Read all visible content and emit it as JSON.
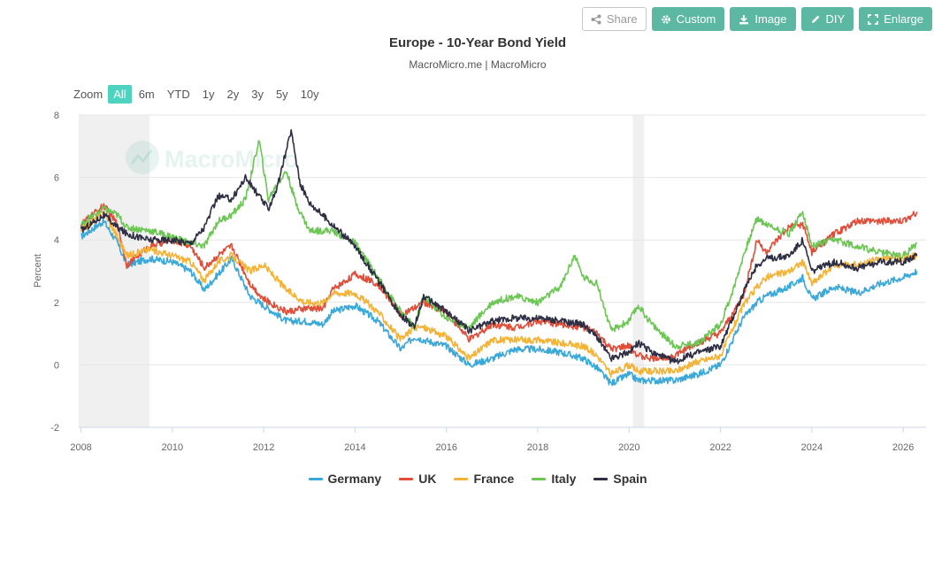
{
  "toolbar": {
    "share_label": "Share",
    "custom_label": "Custom",
    "image_label": "Image",
    "diy_label": "DIY",
    "enlarge_label": "Enlarge"
  },
  "zoom": {
    "label": "Zoom",
    "options": [
      "All",
      "6m",
      "YTD",
      "1y",
      "2y",
      "3y",
      "5y",
      "10y"
    ],
    "active": "All"
  },
  "watermark": "MacroMicro",
  "colors": {
    "Germany": "#3aa8d8",
    "UK": "#e04e39",
    "France": "#f5b335",
    "Italy": "#6cc653",
    "Spain": "#2e2e44",
    "recession_band": "#f0f0f0",
    "accent": "#5cb8a3"
  },
  "chart_data": {
    "type": "line",
    "title": "Europe - 10-Year Bond Yield",
    "subtitle": "MacroMicro.me | MacroMicro",
    "ylabel": "Percent",
    "xlabel": "",
    "ylim": [
      -2,
      8
    ],
    "yticks": [
      -2,
      0,
      2,
      4,
      6,
      8
    ],
    "xlim": [
      2007.95,
      2026.5
    ],
    "xticks": [
      2008,
      2010,
      2012,
      2014,
      2016,
      2018,
      2020,
      2022,
      2024,
      2026
    ],
    "grid": true,
    "legend_position": "bottom",
    "shaded_periods": [
      [
        2007.95,
        2009.5
      ],
      [
        2020.08,
        2020.33
      ]
    ],
    "series": [
      {
        "name": "Germany",
        "x": [
          2008.0,
          2008.5,
          2008.8,
          2009.0,
          2009.5,
          2010.0,
          2010.4,
          2010.7,
          2011.0,
          2011.3,
          2011.7,
          2012.0,
          2012.5,
          2012.9,
          2013.3,
          2013.5,
          2014.0,
          2014.5,
          2015.0,
          2015.3,
          2015.5,
          2016.0,
          2016.5,
          2017.0,
          2017.5,
          2018.0,
          2018.5,
          2019.0,
          2019.3,
          2019.6,
          2020.0,
          2020.2,
          2020.5,
          2021.0,
          2021.5,
          2022.0,
          2022.5,
          2022.8,
          2023.0,
          2023.5,
          2023.8,
          2024.0,
          2024.5,
          2025.0,
          2025.5,
          2026.0,
          2026.3
        ],
        "values": [
          4.1,
          4.6,
          3.9,
          3.2,
          3.4,
          3.3,
          3.0,
          2.4,
          2.9,
          3.4,
          2.2,
          1.9,
          1.4,
          1.4,
          1.3,
          1.7,
          1.9,
          1.4,
          0.5,
          0.9,
          0.8,
          0.6,
          0.0,
          0.2,
          0.5,
          0.5,
          0.4,
          0.2,
          -0.1,
          -0.6,
          -0.3,
          -0.5,
          -0.5,
          -0.5,
          -0.3,
          0.0,
          1.5,
          2.0,
          2.2,
          2.5,
          2.8,
          2.1,
          2.5,
          2.3,
          2.6,
          2.8,
          3.0
        ]
      },
      {
        "name": "UK",
        "x": [
          2008.0,
          2008.5,
          2008.8,
          2009.0,
          2009.5,
          2010.0,
          2010.4,
          2010.7,
          2011.0,
          2011.3,
          2011.7,
          2012.0,
          2012.5,
          2012.9,
          2013.3,
          2013.5,
          2014.0,
          2014.5,
          2015.0,
          2015.3,
          2015.5,
          2016.0,
          2016.5,
          2017.0,
          2017.5,
          2018.0,
          2018.5,
          2019.0,
          2019.3,
          2019.6,
          2020.0,
          2020.2,
          2020.5,
          2021.0,
          2021.5,
          2022.0,
          2022.5,
          2022.8,
          2023.0,
          2023.5,
          2023.8,
          2024.0,
          2024.5,
          2025.0,
          2025.5,
          2026.0,
          2026.3
        ],
        "values": [
          4.5,
          5.1,
          4.5,
          3.2,
          3.8,
          4.0,
          3.8,
          3.1,
          3.5,
          3.8,
          2.6,
          2.1,
          1.7,
          1.8,
          1.8,
          2.4,
          2.9,
          2.6,
          1.6,
          1.8,
          2.0,
          1.7,
          0.8,
          1.3,
          1.2,
          1.4,
          1.3,
          1.2,
          1.0,
          0.5,
          0.6,
          0.3,
          0.2,
          0.3,
          0.7,
          1.0,
          2.2,
          4.0,
          3.6,
          4.4,
          4.5,
          3.6,
          4.2,
          4.6,
          4.6,
          4.6,
          4.9
        ]
      },
      {
        "name": "France",
        "x": [
          2008.0,
          2008.5,
          2008.8,
          2009.0,
          2009.5,
          2010.0,
          2010.4,
          2010.7,
          2011.0,
          2011.3,
          2011.7,
          2012.0,
          2012.5,
          2012.9,
          2013.3,
          2013.5,
          2014.0,
          2014.5,
          2015.0,
          2015.3,
          2015.5,
          2016.0,
          2016.5,
          2017.0,
          2017.5,
          2018.0,
          2018.5,
          2019.0,
          2019.3,
          2019.6,
          2020.0,
          2020.2,
          2020.5,
          2021.0,
          2021.5,
          2022.0,
          2022.5,
          2022.8,
          2023.0,
          2023.5,
          2023.8,
          2024.0,
          2024.5,
          2025.0,
          2025.5,
          2026.0,
          2026.3
        ],
        "values": [
          4.3,
          4.9,
          4.1,
          3.5,
          3.7,
          3.5,
          3.3,
          2.7,
          3.3,
          3.5,
          3.0,
          3.2,
          2.4,
          2.0,
          2.0,
          2.3,
          2.3,
          1.7,
          0.8,
          1.2,
          1.2,
          0.9,
          0.2,
          0.8,
          0.8,
          0.8,
          0.7,
          0.6,
          0.3,
          -0.3,
          0.0,
          -0.2,
          -0.2,
          -0.2,
          0.1,
          0.3,
          1.9,
          2.5,
          2.8,
          3.0,
          3.3,
          2.6,
          3.2,
          3.2,
          3.4,
          3.4,
          3.5
        ]
      },
      {
        "name": "Italy",
        "x": [
          2008.0,
          2008.5,
          2008.8,
          2009.0,
          2009.5,
          2010.0,
          2010.4,
          2010.7,
          2011.0,
          2011.3,
          2011.6,
          2011.9,
          2012.1,
          2012.3,
          2012.5,
          2012.7,
          2013.0,
          2013.5,
          2014.0,
          2014.5,
          2015.0,
          2015.3,
          2015.5,
          2016.0,
          2016.5,
          2017.0,
          2017.5,
          2018.0,
          2018.5,
          2018.8,
          2019.0,
          2019.3,
          2019.6,
          2020.0,
          2020.2,
          2020.5,
          2021.0,
          2021.5,
          2022.0,
          2022.3,
          2022.5,
          2022.8,
          2023.0,
          2023.5,
          2023.8,
          2024.0,
          2024.5,
          2025.0,
          2025.5,
          2026.0,
          2026.3
        ],
        "values": [
          4.5,
          5.0,
          4.8,
          4.4,
          4.3,
          4.1,
          3.9,
          3.8,
          4.6,
          4.8,
          5.3,
          7.2,
          5.3,
          5.8,
          6.2,
          5.2,
          4.3,
          4.3,
          3.9,
          2.8,
          1.7,
          1.2,
          2.2,
          1.5,
          1.2,
          2.0,
          2.2,
          2.0,
          2.5,
          3.5,
          2.8,
          2.6,
          1.1,
          1.4,
          1.9,
          1.3,
          0.6,
          0.7,
          1.3,
          2.5,
          3.5,
          4.7,
          4.5,
          4.2,
          4.9,
          3.8,
          4.0,
          3.8,
          3.6,
          3.5,
          3.9
        ]
      },
      {
        "name": "Spain",
        "x": [
          2008.0,
          2008.5,
          2008.8,
          2009.0,
          2009.5,
          2010.0,
          2010.4,
          2010.7,
          2011.0,
          2011.3,
          2011.6,
          2011.9,
          2012.1,
          2012.3,
          2012.6,
          2012.8,
          2013.0,
          2013.5,
          2014.0,
          2014.5,
          2015.0,
          2015.3,
          2015.5,
          2016.0,
          2016.5,
          2017.0,
          2017.5,
          2018.0,
          2018.5,
          2019.0,
          2019.3,
          2019.6,
          2020.0,
          2020.2,
          2020.5,
          2021.0,
          2021.5,
          2022.0,
          2022.5,
          2022.8,
          2023.0,
          2023.5,
          2023.8,
          2024.0,
          2024.5,
          2025.0,
          2025.5,
          2026.0,
          2026.3
        ],
        "values": [
          4.3,
          4.8,
          4.4,
          4.2,
          4.0,
          4.0,
          3.9,
          4.4,
          5.4,
          5.3,
          6.0,
          5.4,
          5.0,
          5.7,
          7.5,
          5.8,
          5.2,
          4.5,
          3.8,
          2.7,
          1.6,
          1.2,
          2.2,
          1.7,
          1.1,
          1.4,
          1.5,
          1.5,
          1.4,
          1.3,
          0.9,
          0.2,
          0.4,
          0.7,
          0.4,
          0.1,
          0.4,
          0.6,
          2.3,
          3.2,
          3.4,
          3.5,
          4.0,
          3.0,
          3.3,
          3.1,
          3.3,
          3.3,
          3.5
        ]
      }
    ]
  }
}
